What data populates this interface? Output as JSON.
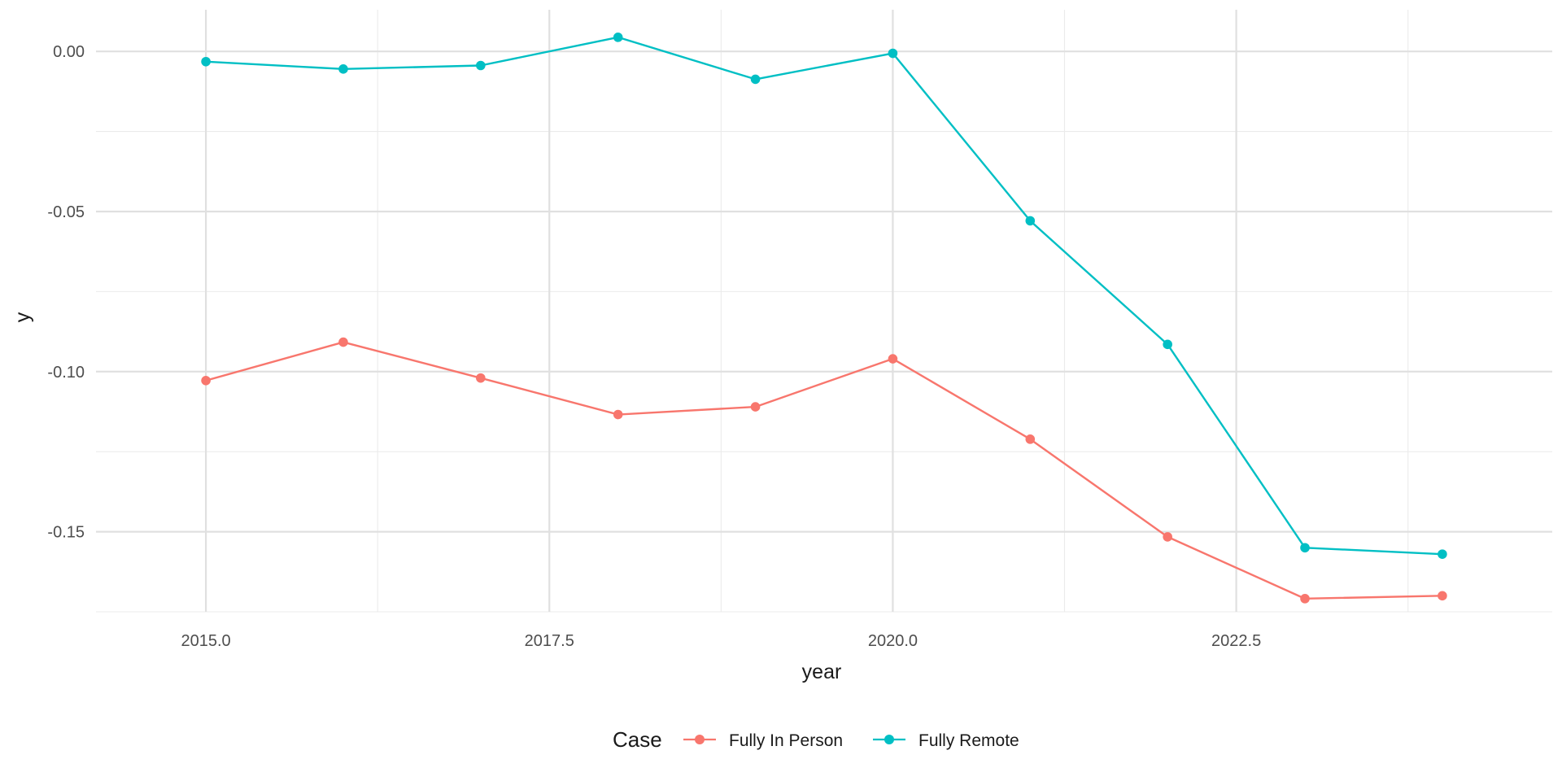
{
  "chart_data": {
    "type": "line",
    "xlabel": "year",
    "ylabel": "y",
    "xlim": [
      2014.2,
      2024.8
    ],
    "ylim": [
      -0.175,
      0.013
    ],
    "x_ticks": [
      2015.0,
      2017.5,
      2020.0,
      2022.5
    ],
    "x_tick_labels": [
      "2015.0",
      "2017.5",
      "2020.0",
      "2022.5"
    ],
    "y_ticks": [
      0.0,
      -0.05,
      -0.1,
      -0.15
    ],
    "y_tick_labels": [
      "0.00",
      "-0.05",
      "-0.10",
      "-0.15"
    ],
    "grid": true,
    "legend": {
      "title": "Case",
      "placement": "bottom"
    },
    "x": [
      2015,
      2016,
      2017,
      2018,
      2019,
      2020,
      2021,
      2022,
      2023,
      2024
    ],
    "series": [
      {
        "name": "Fully In Person",
        "color": "#F8766D",
        "values": [
          -0.1028,
          -0.0908,
          -0.102,
          -0.1134,
          -0.111,
          -0.096,
          -0.1211,
          -0.1516,
          -0.1709,
          -0.17
        ]
      },
      {
        "name": "Fully Remote",
        "color": "#00BFC4",
        "values": [
          -0.0032,
          -0.0055,
          -0.0044,
          0.0044,
          -0.0087,
          -0.0006,
          -0.0529,
          -0.0915,
          -0.155,
          -0.157
        ]
      }
    ]
  }
}
